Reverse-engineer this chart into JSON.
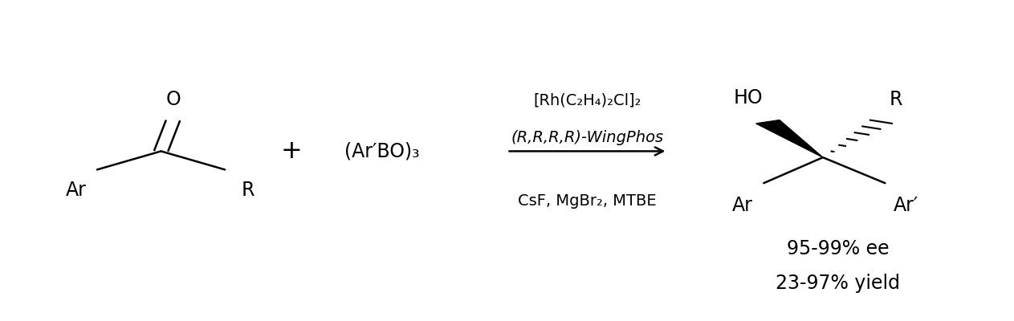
{
  "bg_color": "#ffffff",
  "fig_width": 12.63,
  "fig_height": 4.0,
  "dpi": 100,
  "above_arrow_line1": "[Rh(C₂H₄)₂Cl]₂",
  "above_arrow_line2": "(R,R,R,R)-WingPhos",
  "below_arrow_line1": "CsF, MgBr₂, MTBE",
  "ee_text": "95-99% ee",
  "yield_text": "23-97% yield",
  "fontsize_main": 17,
  "fontsize_arrow": 14
}
